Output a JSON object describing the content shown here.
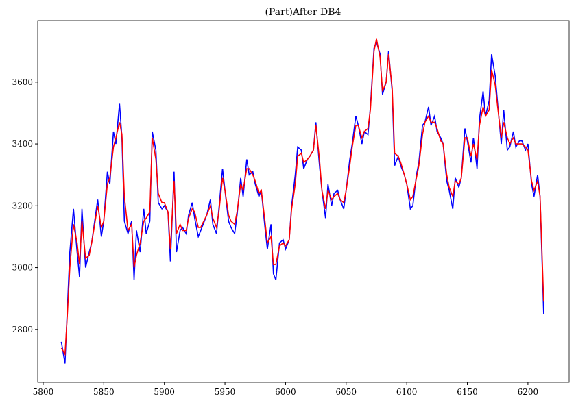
{
  "chart_data": {
    "type": "line",
    "title": "(Part)After DB4",
    "x": [
      5815,
      5818,
      5820,
      5822,
      5825,
      5828,
      5830,
      5832,
      5835,
      5838,
      5840,
      5845,
      5848,
      5850,
      5853,
      5855,
      5858,
      5860,
      5863,
      5865,
      5867,
      5870,
      5873,
      5875,
      5877,
      5880,
      5883,
      5885,
      5888,
      5890,
      5893,
      5895,
      5898,
      5900,
      5903,
      5905,
      5908,
      5910,
      5913,
      5915,
      5918,
      5920,
      5923,
      5925,
      5928,
      5930,
      5935,
      5938,
      5940,
      5943,
      5945,
      5948,
      5950,
      5953,
      5955,
      5958,
      5960,
      5963,
      5965,
      5968,
      5970,
      5973,
      5975,
      5978,
      5980,
      5983,
      5985,
      5988,
      5990,
      5992,
      5995,
      5998,
      6000,
      6003,
      6005,
      6008,
      6010,
      6013,
      6015,
      6018,
      6020,
      6023,
      6025,
      6028,
      6030,
      6033,
      6035,
      6038,
      6040,
      6043,
      6045,
      6048,
      6050,
      6053,
      6055,
      6058,
      6060,
      6063,
      6065,
      6068,
      6070,
      6073,
      6075,
      6078,
      6080,
      6083,
      6085,
      6088,
      6090,
      6093,
      6095,
      6098,
      6100,
      6103,
      6105,
      6108,
      6110,
      6113,
      6115,
      6118,
      6120,
      6123,
      6125,
      6128,
      6130,
      6133,
      6135,
      6138,
      6140,
      6143,
      6145,
      6148,
      6150,
      6153,
      6155,
      6158,
      6160,
      6163,
      6165,
      6168,
      6170,
      6173,
      6175,
      6178,
      6180,
      6183,
      6185,
      6188,
      6190,
      6193,
      6195,
      6198,
      6200,
      6203,
      6205,
      6208,
      6210,
      6213
    ],
    "series": [
      {
        "color": "#0000ff",
        "values": [
          2760,
          2690,
          2870,
          3050,
          3190,
          3050,
          2970,
          3190,
          3000,
          3050,
          3080,
          3220,
          3100,
          3150,
          3310,
          3270,
          3440,
          3400,
          3530,
          3420,
          3150,
          3110,
          3150,
          2960,
          3120,
          3050,
          3190,
          3110,
          3150,
          3440,
          3380,
          3210,
          3190,
          3200,
          3180,
          3020,
          3310,
          3050,
          3120,
          3130,
          3110,
          3170,
          3210,
          3160,
          3100,
          3120,
          3170,
          3220,
          3140,
          3110,
          3190,
          3320,
          3250,
          3150,
          3130,
          3110,
          3170,
          3290,
          3230,
          3350,
          3300,
          3310,
          3270,
          3230,
          3250,
          3130,
          3060,
          3140,
          2980,
          2960,
          3080,
          3090,
          3060,
          3090,
          3200,
          3300,
          3390,
          3380,
          3320,
          3350,
          3360,
          3380,
          3470,
          3330,
          3250,
          3160,
          3270,
          3200,
          3240,
          3250,
          3220,
          3190,
          3250,
          3350,
          3400,
          3490,
          3460,
          3400,
          3440,
          3430,
          3520,
          3710,
          3730,
          3690,
          3560,
          3600,
          3700,
          3570,
          3330,
          3360,
          3330,
          3300,
          3270,
          3190,
          3200,
          3300,
          3340,
          3460,
          3470,
          3520,
          3460,
          3490,
          3440,
          3420,
          3400,
          3280,
          3250,
          3190,
          3290,
          3260,
          3290,
          3450,
          3410,
          3340,
          3420,
          3320,
          3480,
          3570,
          3490,
          3540,
          3690,
          3620,
          3530,
          3400,
          3510,
          3380,
          3390,
          3440,
          3390,
          3410,
          3410,
          3380,
          3400,
          3270,
          3230,
          3300,
          3230,
          2850
        ]
      },
      {
        "color": "#ff0000",
        "values": [
          2740,
          2720,
          2850,
          3000,
          3140,
          3080,
          3010,
          3150,
          3030,
          3040,
          3080,
          3200,
          3130,
          3150,
          3270,
          3290,
          3390,
          3420,
          3470,
          3430,
          3230,
          3120,
          3140,
          3000,
          3040,
          3080,
          3150,
          3160,
          3180,
          3420,
          3350,
          3240,
          3210,
          3210,
          3180,
          3060,
          3280,
          3110,
          3140,
          3120,
          3120,
          3160,
          3190,
          3180,
          3130,
          3130,
          3170,
          3200,
          3160,
          3130,
          3180,
          3290,
          3250,
          3170,
          3150,
          3140,
          3180,
          3270,
          3250,
          3320,
          3320,
          3300,
          3280,
          3240,
          3250,
          3150,
          3080,
          3100,
          3010,
          3010,
          3070,
          3080,
          3070,
          3090,
          3190,
          3270,
          3360,
          3370,
          3340,
          3350,
          3360,
          3380,
          3460,
          3350,
          3250,
          3190,
          3250,
          3220,
          3230,
          3240,
          3220,
          3210,
          3250,
          3330,
          3390,
          3460,
          3460,
          3420,
          3440,
          3450,
          3510,
          3700,
          3740,
          3680,
          3570,
          3600,
          3690,
          3580,
          3370,
          3360,
          3340,
          3300,
          3270,
          3220,
          3230,
          3290,
          3330,
          3430,
          3470,
          3490,
          3470,
          3470,
          3450,
          3410,
          3400,
          3300,
          3260,
          3230,
          3280,
          3270,
          3290,
          3420,
          3420,
          3360,
          3400,
          3350,
          3460,
          3520,
          3490,
          3510,
          3640,
          3590,
          3520,
          3420,
          3470,
          3420,
          3400,
          3420,
          3400,
          3400,
          3400,
          3390,
          3380,
          3280,
          3250,
          3280,
          3230,
          2890
        ]
      }
    ],
    "xlim": [
      5795.5,
      6234
    ],
    "ylim": [
      2629,
      3799
    ],
    "xticks": [
      5800,
      5850,
      5900,
      5950,
      6000,
      6050,
      6100,
      6150,
      6200
    ],
    "yticks": [
      2800,
      3000,
      3200,
      3400,
      3600
    ]
  }
}
